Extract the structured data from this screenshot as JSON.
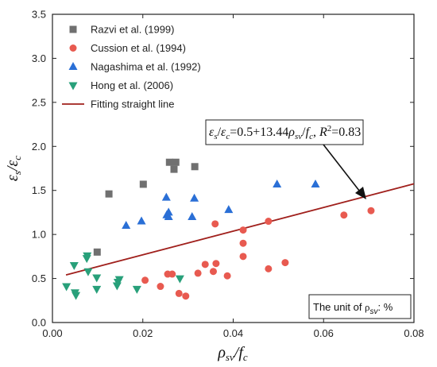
{
  "chart_data": {
    "type": "scatter",
    "xlim": [
      0.0,
      0.08
    ],
    "ylim": [
      0.0,
      3.5
    ],
    "x_ticks": [
      "0.00",
      "0.02",
      "0.04",
      "0.06",
      "0.08"
    ],
    "y_ticks": [
      "0.0",
      "0.5",
      "1.0",
      "1.5",
      "2.0",
      "2.5",
      "3.0",
      "3.5"
    ],
    "xlabel": "ρsv/fc",
    "ylabel": "εs/εc",
    "grid": false,
    "legend_position": "top-left",
    "series": [
      {
        "name": "Razvi  et al. (1999)",
        "marker": "square",
        "color": "#707070",
        "points": [
          [
            0.0125,
            1.46
          ],
          [
            0.0201,
            1.57
          ],
          [
            0.0259,
            1.82
          ],
          [
            0.0273,
            1.82
          ],
          [
            0.0269,
            1.74
          ],
          [
            0.0315,
            1.77
          ],
          [
            0.0099,
            0.8
          ]
        ]
      },
      {
        "name": "Cussion et al. (1994)",
        "marker": "circle",
        "color": "#e85a50",
        "points": [
          [
            0.0205,
            0.48
          ],
          [
            0.0239,
            0.41
          ],
          [
            0.0255,
            0.55
          ],
          [
            0.0265,
            0.55
          ],
          [
            0.028,
            0.33
          ],
          [
            0.0295,
            0.3
          ],
          [
            0.0322,
            0.56
          ],
          [
            0.0338,
            0.66
          ],
          [
            0.0356,
            0.58
          ],
          [
            0.0362,
            0.67
          ],
          [
            0.0387,
            0.53
          ],
          [
            0.036,
            1.12
          ],
          [
            0.0422,
            1.05
          ],
          [
            0.0422,
            0.9
          ],
          [
            0.0422,
            0.75
          ],
          [
            0.0478,
            1.15
          ],
          [
            0.0478,
            0.61
          ],
          [
            0.0515,
            0.68
          ],
          [
            0.0645,
            1.22
          ],
          [
            0.0705,
            1.27
          ]
        ]
      },
      {
        "name": "Nagashima et al. (1992)",
        "marker": "triangle-up",
        "color": "#2a6fd6",
        "points": [
          [
            0.0163,
            1.1
          ],
          [
            0.0197,
            1.15
          ],
          [
            0.0252,
            1.42
          ],
          [
            0.0253,
            1.22
          ],
          [
            0.0257,
            1.2
          ],
          [
            0.0257,
            1.25
          ],
          [
            0.0309,
            1.2
          ],
          [
            0.0314,
            1.41
          ],
          [
            0.039,
            1.28
          ],
          [
            0.0497,
            1.57
          ],
          [
            0.0582,
            1.57
          ]
        ]
      },
      {
        "name": "Hong et al. (2006)",
        "marker": "triangle-down",
        "color": "#28a07a",
        "points": [
          [
            0.0031,
            0.41
          ],
          [
            0.0048,
            0.65
          ],
          [
            0.005,
            0.34
          ],
          [
            0.0052,
            0.31
          ],
          [
            0.0076,
            0.73
          ],
          [
            0.0077,
            0.76
          ],
          [
            0.0079,
            0.58
          ],
          [
            0.0098,
            0.51
          ],
          [
            0.0098,
            0.38
          ],
          [
            0.0143,
            0.42
          ],
          [
            0.0148,
            0.49
          ],
          [
            0.0145,
            0.46
          ],
          [
            0.0187,
            0.38
          ],
          [
            0.0282,
            0.5
          ]
        ]
      }
    ],
    "fit_line": {
      "name": "Fitting straight line",
      "color": "#a0201c",
      "intercept": 0.5,
      "slope": 13.44,
      "x_range": [
        0.003,
        0.08
      ]
    },
    "annotations": {
      "equation": {
        "eps_s": "ε",
        "s_sub": "s",
        "slash1": "/",
        "eps_c": "ε",
        "c_sub": "c",
        "mid": "=0.5+13.44",
        "rho": "ρ",
        "sv_sub": "sv",
        "slash2": "/",
        "f": "f",
        "c_sub2": "c",
        "comma": ", ",
        "R": "R",
        "sup": "2",
        "r_val": "=0.83"
      },
      "unit_box": {
        "prefix": "The unit of  ",
        "rho": "ρ",
        "sub": "sv",
        "suffix": ": %"
      }
    }
  }
}
